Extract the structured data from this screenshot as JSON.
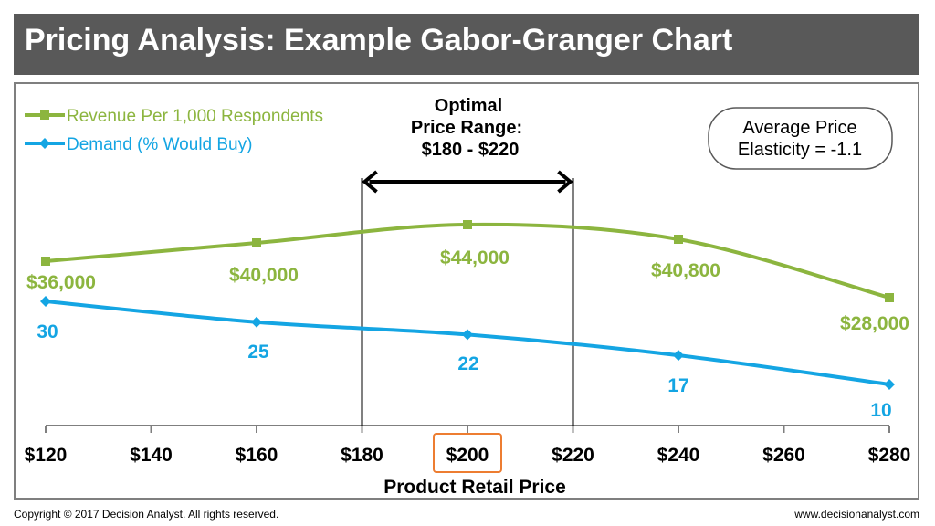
{
  "header": {
    "title": "Pricing Analysis: Example Gabor-Granger Chart"
  },
  "footer": {
    "copyright": "Copyright © 2017 Decision Analyst. All rights reserved.",
    "website": "www.decisionanalyst.com"
  },
  "chart_data": {
    "type": "line",
    "title": "",
    "xlabel": "Product Retail Price",
    "ylabel": "",
    "x_ticks": [
      120,
      140,
      160,
      180,
      200,
      220,
      240,
      260,
      280
    ],
    "x_tick_labels": [
      "$120",
      "$140",
      "$160",
      "$180",
      "$200",
      "$220",
      "$240",
      "$260",
      "$280"
    ],
    "highlighted_tick": "$200",
    "series": [
      {
        "name": "Revenue Per 1,000 Respondents",
        "color": "#8cb53f",
        "marker": "square",
        "x": [
          120,
          160,
          200,
          240,
          280
        ],
        "values": [
          36000,
          40000,
          44000,
          40800,
          28000
        ],
        "labels": [
          "$36,000",
          "$40,000",
          "$44,000",
          "$40,800",
          "$28,000"
        ]
      },
      {
        "name": "Demand (% Would Buy)",
        "color": "#14a5e3",
        "marker": "diamond",
        "x": [
          120,
          160,
          200,
          240,
          280
        ],
        "values": [
          30,
          25,
          22,
          17,
          10
        ],
        "labels": [
          "30",
          "25",
          "22",
          "17",
          "10"
        ]
      }
    ],
    "optimal_range": {
      "from": 180,
      "to": 220,
      "label_lines": [
        "Optimal",
        "Price Range:",
        "$180 - $220"
      ]
    },
    "callout": {
      "lines": [
        "Average Price",
        "Elasticity = -1.1"
      ]
    },
    "legend_position": "top-left",
    "grid": false
  }
}
